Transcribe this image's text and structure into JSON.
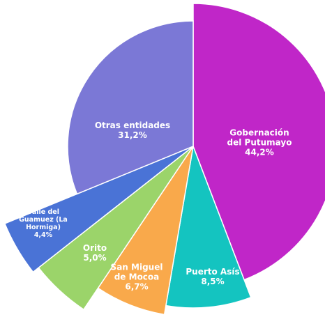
{
  "chart_data": {
    "type": "pie",
    "categories": [
      "Gobernación del Putumayo",
      "Puerto Asís",
      "San Miguel de Mocoa",
      "Orito",
      "Valle del Guamuez (La Hormiga)",
      "Otras entidades"
    ],
    "values": [
      44.2,
      8.5,
      6.7,
      5.0,
      4.4,
      31.2
    ],
    "value_labels": [
      "44,2%",
      "8,5%",
      "6,7%",
      "5,0%",
      "4,4%",
      "31,2%"
    ],
    "colors": [
      "#c026c8",
      "#14c4c0",
      "#f9a94b",
      "#9bd46a",
      "#4a73d6",
      "#7b78d6"
    ]
  }
}
